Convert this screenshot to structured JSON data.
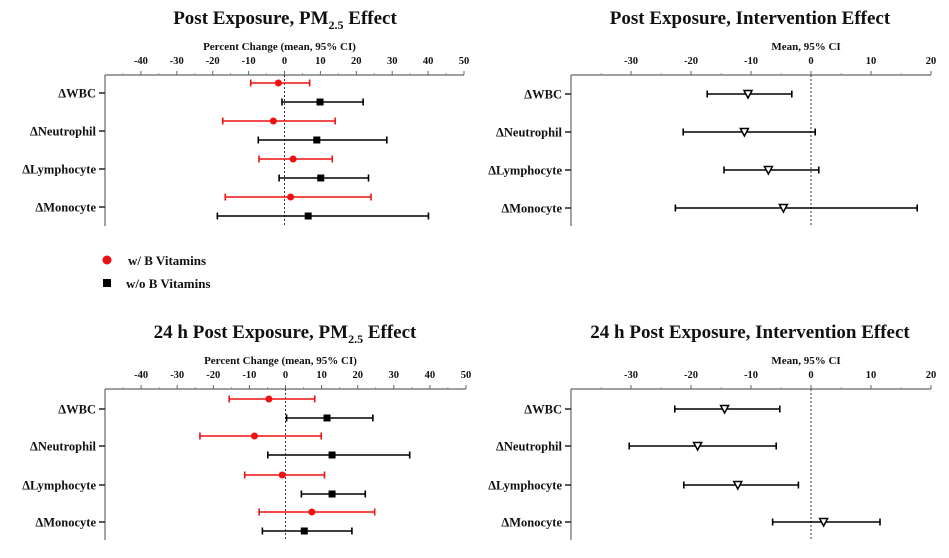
{
  "legend": {
    "items": [
      {
        "label": "w/ B Vitamins",
        "color": "#ee1111",
        "marker": "circle"
      },
      {
        "label": "w/o  B Vitamins",
        "color": "#000000",
        "marker": "square"
      }
    ],
    "placement": "between top-left and bottom-left panels"
  },
  "chart_data": [
    {
      "type": "forest",
      "title": "Post Exposure, PM",
      "title_subscript": "2.5",
      "title_suffix": " Effect",
      "xlabel": "Percent Change (mean, 95%  CI)",
      "xlim": [
        -50,
        50
      ],
      "xticks": [
        -40,
        -30,
        -20,
        -10,
        0,
        10,
        20,
        30,
        40,
        50
      ],
      "reference_line": 0,
      "categories": [
        "ΔWBC",
        "ΔNeutrophil",
        "ΔLymphocyte",
        "ΔMonocyte"
      ],
      "series": [
        {
          "name": "w/ B Vitamins",
          "color": "#ee1111",
          "marker": "circle",
          "mean": [
            -1.7,
            -3.1,
            2.4,
            1.7
          ],
          "lower": [
            -9.4,
            -17.2,
            -7.1,
            -16.5
          ],
          "upper": [
            7.0,
            14.1,
            13.3,
            24.1
          ]
        },
        {
          "name": "w/o  B Vitamins",
          "color": "#000000",
          "marker": "square",
          "mean": [
            9.9,
            9.0,
            10.1,
            6.6
          ],
          "lower": [
            -0.7,
            -7.3,
            -1.5,
            -18.7
          ],
          "upper": [
            21.9,
            28.5,
            23.4,
            40.1
          ]
        }
      ]
    },
    {
      "type": "forest",
      "title": "Post Exposure, Intervention Effect",
      "title_subscript": "",
      "title_suffix": "",
      "xlabel": "Mean, 95%  CI",
      "xlim": [
        -40,
        20
      ],
      "xticks": [
        -30,
        -20,
        -10,
        0,
        10,
        20
      ],
      "reference_line": 0,
      "categories": [
        "ΔWBC",
        "ΔNeutrophil",
        "ΔLymphocyte",
        "ΔMonocyte"
      ],
      "series": [
        {
          "name": "Intervention",
          "color": "#000000",
          "marker": "triangle-down-open",
          "mean": [
            -10.5,
            -11.1,
            -7.1,
            -4.6
          ],
          "lower": [
            -17.3,
            -21.3,
            -14.5,
            -22.6
          ],
          "upper": [
            -3.2,
            0.7,
            1.3,
            17.7
          ]
        }
      ]
    },
    {
      "type": "forest",
      "title": "24 h Post Exposure, PM",
      "title_subscript": "2.5",
      "title_suffix": " Effect",
      "xlabel": "Percent Change (mean, 95%  CI)",
      "xlim": [
        -50,
        50
      ],
      "xticks": [
        -40,
        -30,
        -20,
        -10,
        0,
        10,
        20,
        30,
        40,
        50
      ],
      "reference_line": 0,
      "categories": [
        "ΔWBC",
        "ΔNeutrophil",
        "ΔLymphocyte",
        "ΔMonocyte"
      ],
      "series": [
        {
          "name": "w/ B Vitamins",
          "color": "#ee1111",
          "marker": "circle",
          "mean": [
            -4.6,
            -8.6,
            -0.9,
            7.3
          ],
          "lower": [
            -15.6,
            -23.7,
            -11.3,
            -7.3
          ],
          "upper": [
            8.1,
            9.9,
            10.8,
            24.7
          ]
        },
        {
          "name": "w/o  B Vitamins",
          "color": "#000000",
          "marker": "square",
          "mean": [
            11.5,
            12.9,
            12.9,
            5.2
          ],
          "lower": [
            0.3,
            -4.9,
            4.4,
            -6.4
          ],
          "upper": [
            24.2,
            34.4,
            22.1,
            18.4
          ]
        }
      ]
    },
    {
      "type": "forest",
      "title": "24 h Post Exposure, Intervention Effect",
      "title_subscript": "",
      "title_suffix": "",
      "xlabel": "Mean, 95%  CI",
      "xlim": [
        -40,
        20
      ],
      "xticks": [
        -30,
        -20,
        -10,
        0,
        10,
        20
      ],
      "reference_line": 0,
      "categories": [
        "ΔWBC",
        "ΔNeutrophil",
        "ΔLymphocyte",
        "ΔMonocyte"
      ],
      "series": [
        {
          "name": "Intervention",
          "color": "#000000",
          "marker": "triangle-down-open",
          "mean": [
            -14.4,
            -18.9,
            -12.2,
            2.1
          ],
          "lower": [
            -22.7,
            -30.3,
            -21.2,
            -6.4
          ],
          "upper": [
            -5.2,
            -5.8,
            -2.1,
            11.5
          ]
        }
      ]
    }
  ]
}
